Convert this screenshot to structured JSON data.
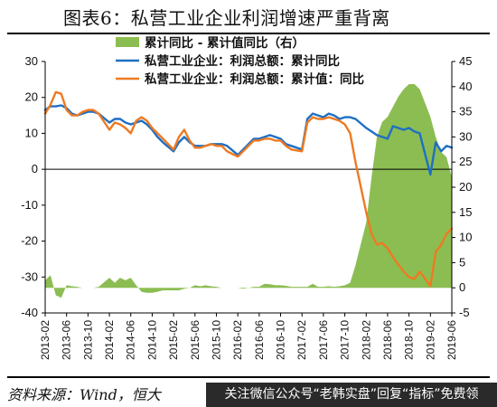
{
  "header": {
    "title": "图表6：私营工业企业利润增速严重背离"
  },
  "footer": {
    "source": "资料来源：Wind，恒大",
    "banner": "关注微信公众号“老韩实盘”回复“指标”免费领"
  },
  "chart_data": {
    "type": "line+area",
    "legend_position": "top",
    "categories": [
      "2013-02",
      "2013-06",
      "2013-10",
      "2014-02",
      "2014-06",
      "2014-10",
      "2015-02",
      "2015-06",
      "2015-10",
      "2016-02",
      "2016-06",
      "2016-10",
      "2017-02",
      "2017-06",
      "2017-10",
      "2018-02",
      "2018-06",
      "2018-10",
      "2019-02",
      "2019-06"
    ],
    "y_left": {
      "min": -40,
      "max": 30,
      "ticks": [
        30,
        20,
        10,
        0,
        -10,
        -20,
        -30,
        -40
      ]
    },
    "y_right": {
      "min": -5,
      "max": 45,
      "ticks": [
        45,
        40,
        35,
        30,
        25,
        20,
        15,
        10,
        5,
        0,
        -5
      ]
    },
    "x_range": [
      "2013-02",
      "2019-06"
    ],
    "series": [
      {
        "name": "累计同比 - 累计值同比（右）",
        "type": "area",
        "axis": "right",
        "color": "#8cbd52",
        "points": [
          [
            "2013-02",
            1.5
          ],
          [
            "2013-03",
            2.5
          ],
          [
            "2013-04",
            -1.5
          ],
          [
            "2013-05",
            -2.0
          ],
          [
            "2013-06",
            0.5
          ],
          [
            "2013-07",
            0.3
          ],
          [
            "2013-08",
            0.2
          ],
          [
            "2013-09",
            0.0
          ],
          [
            "2013-10",
            0.0
          ],
          [
            "2013-11",
            0.0
          ],
          [
            "2013-12",
            0.2
          ],
          [
            "2014-02",
            2.0
          ],
          [
            "2014-03",
            1.0
          ],
          [
            "2014-04",
            2.0
          ],
          [
            "2014-05",
            1.5
          ],
          [
            "2014-06",
            2.0
          ],
          [
            "2014-07",
            0.5
          ],
          [
            "2014-08",
            -0.8
          ],
          [
            "2014-09",
            -1.0
          ],
          [
            "2014-10",
            -1.0
          ],
          [
            "2014-11",
            -0.8
          ],
          [
            "2014-12",
            -0.5
          ],
          [
            "2015-02",
            -0.5
          ],
          [
            "2015-03",
            -0.5
          ],
          [
            "2015-04",
            -0.2
          ],
          [
            "2015-05",
            0.0
          ],
          [
            "2015-06",
            0.5
          ],
          [
            "2015-07",
            0.3
          ],
          [
            "2015-08",
            0.5
          ],
          [
            "2015-09",
            0.3
          ],
          [
            "2015-10",
            0.2
          ],
          [
            "2015-11",
            0.0
          ],
          [
            "2015-12",
            0.0
          ],
          [
            "2016-02",
            0.0
          ],
          [
            "2016-03",
            -0.2
          ],
          [
            "2016-04",
            0.0
          ],
          [
            "2016-05",
            0.2
          ],
          [
            "2016-06",
            0.2
          ],
          [
            "2016-07",
            0.8
          ],
          [
            "2016-08",
            0.7
          ],
          [
            "2016-09",
            0.5
          ],
          [
            "2016-10",
            0.5
          ],
          [
            "2016-11",
            0.4
          ],
          [
            "2016-12",
            0.2
          ],
          [
            "2017-02",
            0.2
          ],
          [
            "2017-03",
            0.2
          ],
          [
            "2017-04",
            0.8
          ],
          [
            "2017-05",
            0.2
          ],
          [
            "2017-06",
            0.2
          ],
          [
            "2017-07",
            0.3
          ],
          [
            "2017-08",
            0.2
          ],
          [
            "2017-09",
            0.3
          ],
          [
            "2017-10",
            0.5
          ],
          [
            "2017-11",
            1.0
          ],
          [
            "2017-12",
            4.5
          ],
          [
            "2018-02",
            13.0
          ],
          [
            "2018-03",
            22.0
          ],
          [
            "2018-04",
            30.0
          ],
          [
            "2018-05",
            33.0
          ],
          [
            "2018-06",
            34.0
          ],
          [
            "2018-07",
            36.0
          ],
          [
            "2018-08",
            38.0
          ],
          [
            "2018-09",
            39.5
          ],
          [
            "2018-10",
            40.5
          ],
          [
            "2018-11",
            40.5
          ],
          [
            "2018-12",
            39.5
          ],
          [
            "2019-02",
            34.0
          ],
          [
            "2019-03",
            30.0
          ],
          [
            "2019-04",
            27.0
          ],
          [
            "2019-05",
            26.0
          ],
          [
            "2019-06",
            22.0
          ]
        ]
      },
      {
        "name": "私营工业企业：利润总额：累计同比",
        "type": "line",
        "axis": "left",
        "color": "#1f6fc3",
        "points": [
          [
            "2013-02",
            16.5
          ],
          [
            "2013-03",
            17.5
          ],
          [
            "2013-04",
            17.5
          ],
          [
            "2013-05",
            17.8
          ],
          [
            "2013-06",
            17.0
          ],
          [
            "2013-07",
            15.5
          ],
          [
            "2013-08",
            15.0
          ],
          [
            "2013-09",
            15.5
          ],
          [
            "2013-10",
            16.0
          ],
          [
            "2013-11",
            16.0
          ],
          [
            "2013-12",
            15.5
          ],
          [
            "2014-02",
            13.0
          ],
          [
            "2014-03",
            14.0
          ],
          [
            "2014-04",
            14.0
          ],
          [
            "2014-05",
            13.0
          ],
          [
            "2014-06",
            12.5
          ],
          [
            "2014-07",
            13.0
          ],
          [
            "2014-08",
            13.5
          ],
          [
            "2014-09",
            12.5
          ],
          [
            "2014-10",
            11.0
          ],
          [
            "2014-11",
            9.0
          ],
          [
            "2014-12",
            7.5
          ],
          [
            "2015-02",
            5.0
          ],
          [
            "2015-03",
            7.5
          ],
          [
            "2015-04",
            9.0
          ],
          [
            "2015-05",
            7.5
          ],
          [
            "2015-06",
            6.5
          ],
          [
            "2015-07",
            6.5
          ],
          [
            "2015-08",
            6.5
          ],
          [
            "2015-09",
            7.0
          ],
          [
            "2015-10",
            7.0
          ],
          [
            "2015-11",
            7.0
          ],
          [
            "2015-12",
            6.5
          ],
          [
            "2016-02",
            4.0
          ],
          [
            "2016-03",
            5.5
          ],
          [
            "2016-04",
            7.0
          ],
          [
            "2016-05",
            8.5
          ],
          [
            "2016-06",
            8.5
          ],
          [
            "2016-07",
            9.0
          ],
          [
            "2016-08",
            9.5
          ],
          [
            "2016-09",
            9.0
          ],
          [
            "2016-10",
            8.5
          ],
          [
            "2016-11",
            7.0
          ],
          [
            "2016-12",
            6.5
          ],
          [
            "2017-02",
            5.5
          ],
          [
            "2017-03",
            14.0
          ],
          [
            "2017-04",
            15.5
          ],
          [
            "2017-05",
            15.0
          ],
          [
            "2017-06",
            14.5
          ],
          [
            "2017-07",
            15.5
          ],
          [
            "2017-08",
            15.0
          ],
          [
            "2017-09",
            14.0
          ],
          [
            "2017-10",
            14.5
          ],
          [
            "2017-11",
            14.5
          ],
          [
            "2017-12",
            14.0
          ],
          [
            "2018-02",
            11.5
          ],
          [
            "2018-03",
            10.5
          ],
          [
            "2018-04",
            9.5
          ],
          [
            "2018-05",
            9.0
          ],
          [
            "2018-06",
            8.5
          ],
          [
            "2018-07",
            12.0
          ],
          [
            "2018-08",
            11.5
          ],
          [
            "2018-09",
            11.0
          ],
          [
            "2018-10",
            11.5
          ],
          [
            "2018-11",
            10.5
          ],
          [
            "2018-12",
            10.0
          ],
          [
            "2019-02",
            -1.5
          ],
          [
            "2019-03",
            7.5
          ],
          [
            "2019-04",
            5.0
          ],
          [
            "2019-05",
            6.5
          ],
          [
            "2019-06",
            6.0
          ]
        ]
      },
      {
        "name": "私营工业企业：利润总额：累计值：同比",
        "type": "line",
        "axis": "left",
        "color": "#ee7a22",
        "points": [
          [
            "2013-02",
            15.5
          ],
          [
            "2013-03",
            18.0
          ],
          [
            "2013-04",
            21.5
          ],
          [
            "2013-05",
            21.0
          ],
          [
            "2013-06",
            16.5
          ],
          [
            "2013-07",
            15.0
          ],
          [
            "2013-08",
            15.0
          ],
          [
            "2013-09",
            16.0
          ],
          [
            "2013-10",
            16.5
          ],
          [
            "2013-11",
            16.5
          ],
          [
            "2013-12",
            15.5
          ],
          [
            "2014-02",
            11.0
          ],
          [
            "2014-03",
            13.0
          ],
          [
            "2014-04",
            12.5
          ],
          [
            "2014-05",
            11.5
          ],
          [
            "2014-06",
            10.0
          ],
          [
            "2014-07",
            13.5
          ],
          [
            "2014-08",
            14.5
          ],
          [
            "2014-09",
            13.5
          ],
          [
            "2014-10",
            11.5
          ],
          [
            "2014-11",
            10.0
          ],
          [
            "2014-12",
            8.5
          ],
          [
            "2015-02",
            5.5
          ],
          [
            "2015-03",
            9.0
          ],
          [
            "2015-04",
            11.0
          ],
          [
            "2015-05",
            8.0
          ],
          [
            "2015-06",
            6.0
          ],
          [
            "2015-07",
            6.0
          ],
          [
            "2015-08",
            6.5
          ],
          [
            "2015-09",
            7.0
          ],
          [
            "2015-10",
            6.5
          ],
          [
            "2015-11",
            6.5
          ],
          [
            "2015-12",
            5.0
          ],
          [
            "2016-02",
            3.5
          ],
          [
            "2016-03",
            5.0
          ],
          [
            "2016-04",
            6.5
          ],
          [
            "2016-05",
            8.0
          ],
          [
            "2016-06",
            8.0
          ],
          [
            "2016-07",
            8.5
          ],
          [
            "2016-08",
            8.5
          ],
          [
            "2016-09",
            8.0
          ],
          [
            "2016-10",
            8.0
          ],
          [
            "2016-11",
            6.5
          ],
          [
            "2016-12",
            5.5
          ],
          [
            "2017-02",
            5.0
          ],
          [
            "2017-03",
            13.0
          ],
          [
            "2017-04",
            14.5
          ],
          [
            "2017-05",
            14.0
          ],
          [
            "2017-06",
            14.0
          ],
          [
            "2017-07",
            14.5
          ],
          [
            "2017-08",
            14.0
          ],
          [
            "2017-09",
            13.5
          ],
          [
            "2017-10",
            12.5
          ],
          [
            "2017-11",
            10.0
          ],
          [
            "2017-12",
            2.0
          ],
          [
            "2018-02",
            -12.0
          ],
          [
            "2018-03",
            -18.0
          ],
          [
            "2018-04",
            -21.0
          ],
          [
            "2018-05",
            -20.5
          ],
          [
            "2018-06",
            -22.0
          ],
          [
            "2018-07",
            -24.5
          ],
          [
            "2018-08",
            -26.5
          ],
          [
            "2018-09",
            -28.5
          ],
          [
            "2018-10",
            -30.0
          ],
          [
            "2018-11",
            -30.5
          ],
          [
            "2018-12",
            -28.5
          ],
          [
            "2019-02",
            -32.5
          ],
          [
            "2019-03",
            -23.0
          ],
          [
            "2019-04",
            -21.0
          ],
          [
            "2019-05",
            -18.0
          ],
          [
            "2019-06",
            -16.5
          ]
        ]
      }
    ]
  }
}
